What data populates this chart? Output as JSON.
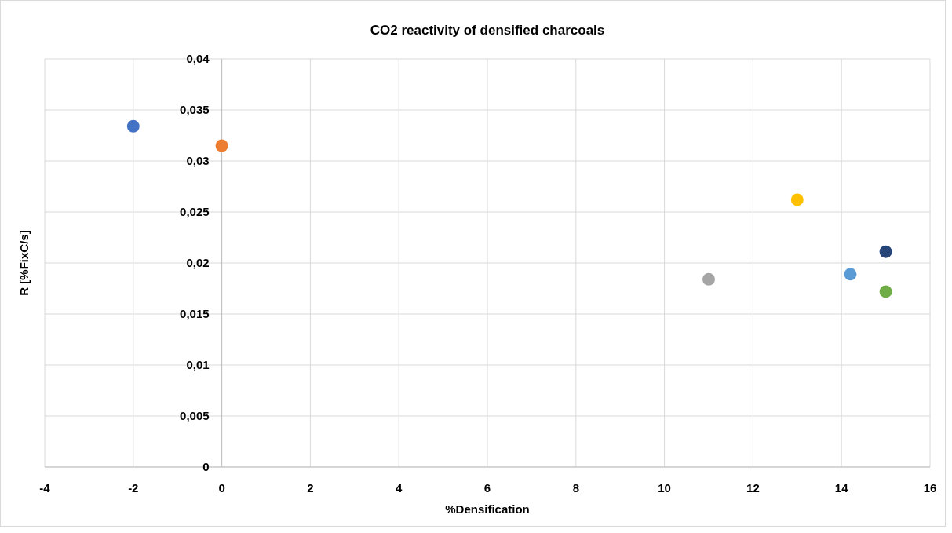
{
  "chart_data": {
    "type": "scatter",
    "title": "CO2 reactivity of densified charcoals",
    "xlabel": "%Densification",
    "ylabel": "R [%FixC/s]",
    "xlim": [
      -4,
      16
    ],
    "xticks": [
      -4,
      -2,
      0,
      2,
      4,
      6,
      8,
      10,
      12,
      14,
      16
    ],
    "ylim": [
      0,
      0.04
    ],
    "yticks": [
      0,
      {
        "value": 0.005,
        "label": "0,005"
      },
      {
        "value": 0.01,
        "label": "0,01"
      },
      {
        "value": 0.015,
        "label": "0,015"
      },
      {
        "value": 0.02,
        "label": "0,02"
      },
      {
        "value": 0.025,
        "label": "0,025"
      },
      {
        "value": 0.03,
        "label": "0,03"
      },
      {
        "value": 0.035,
        "label": "0,035"
      },
      {
        "value": 0.04,
        "label": "0,04"
      }
    ],
    "grid": true,
    "marker": "circle",
    "series": [
      {
        "color": "#4472c4",
        "x": [
          -2
        ],
        "values": [
          0.0334
        ]
      },
      {
        "color": "#ed7d31",
        "x": [
          0
        ],
        "values": [
          0.0315
        ]
      },
      {
        "color": "#a5a5a5",
        "x": [
          11
        ],
        "values": [
          0.0184
        ]
      },
      {
        "color": "#ffc000",
        "x": [
          13
        ],
        "values": [
          0.0262
        ]
      },
      {
        "color": "#5b9bd5",
        "x": [
          14.2
        ],
        "values": [
          0.0189
        ]
      },
      {
        "color": "#70ad47",
        "x": [
          15
        ],
        "values": [
          0.0172
        ]
      },
      {
        "color": "#264478",
        "x": [
          15
        ],
        "values": [
          0.0211
        ]
      }
    ]
  }
}
